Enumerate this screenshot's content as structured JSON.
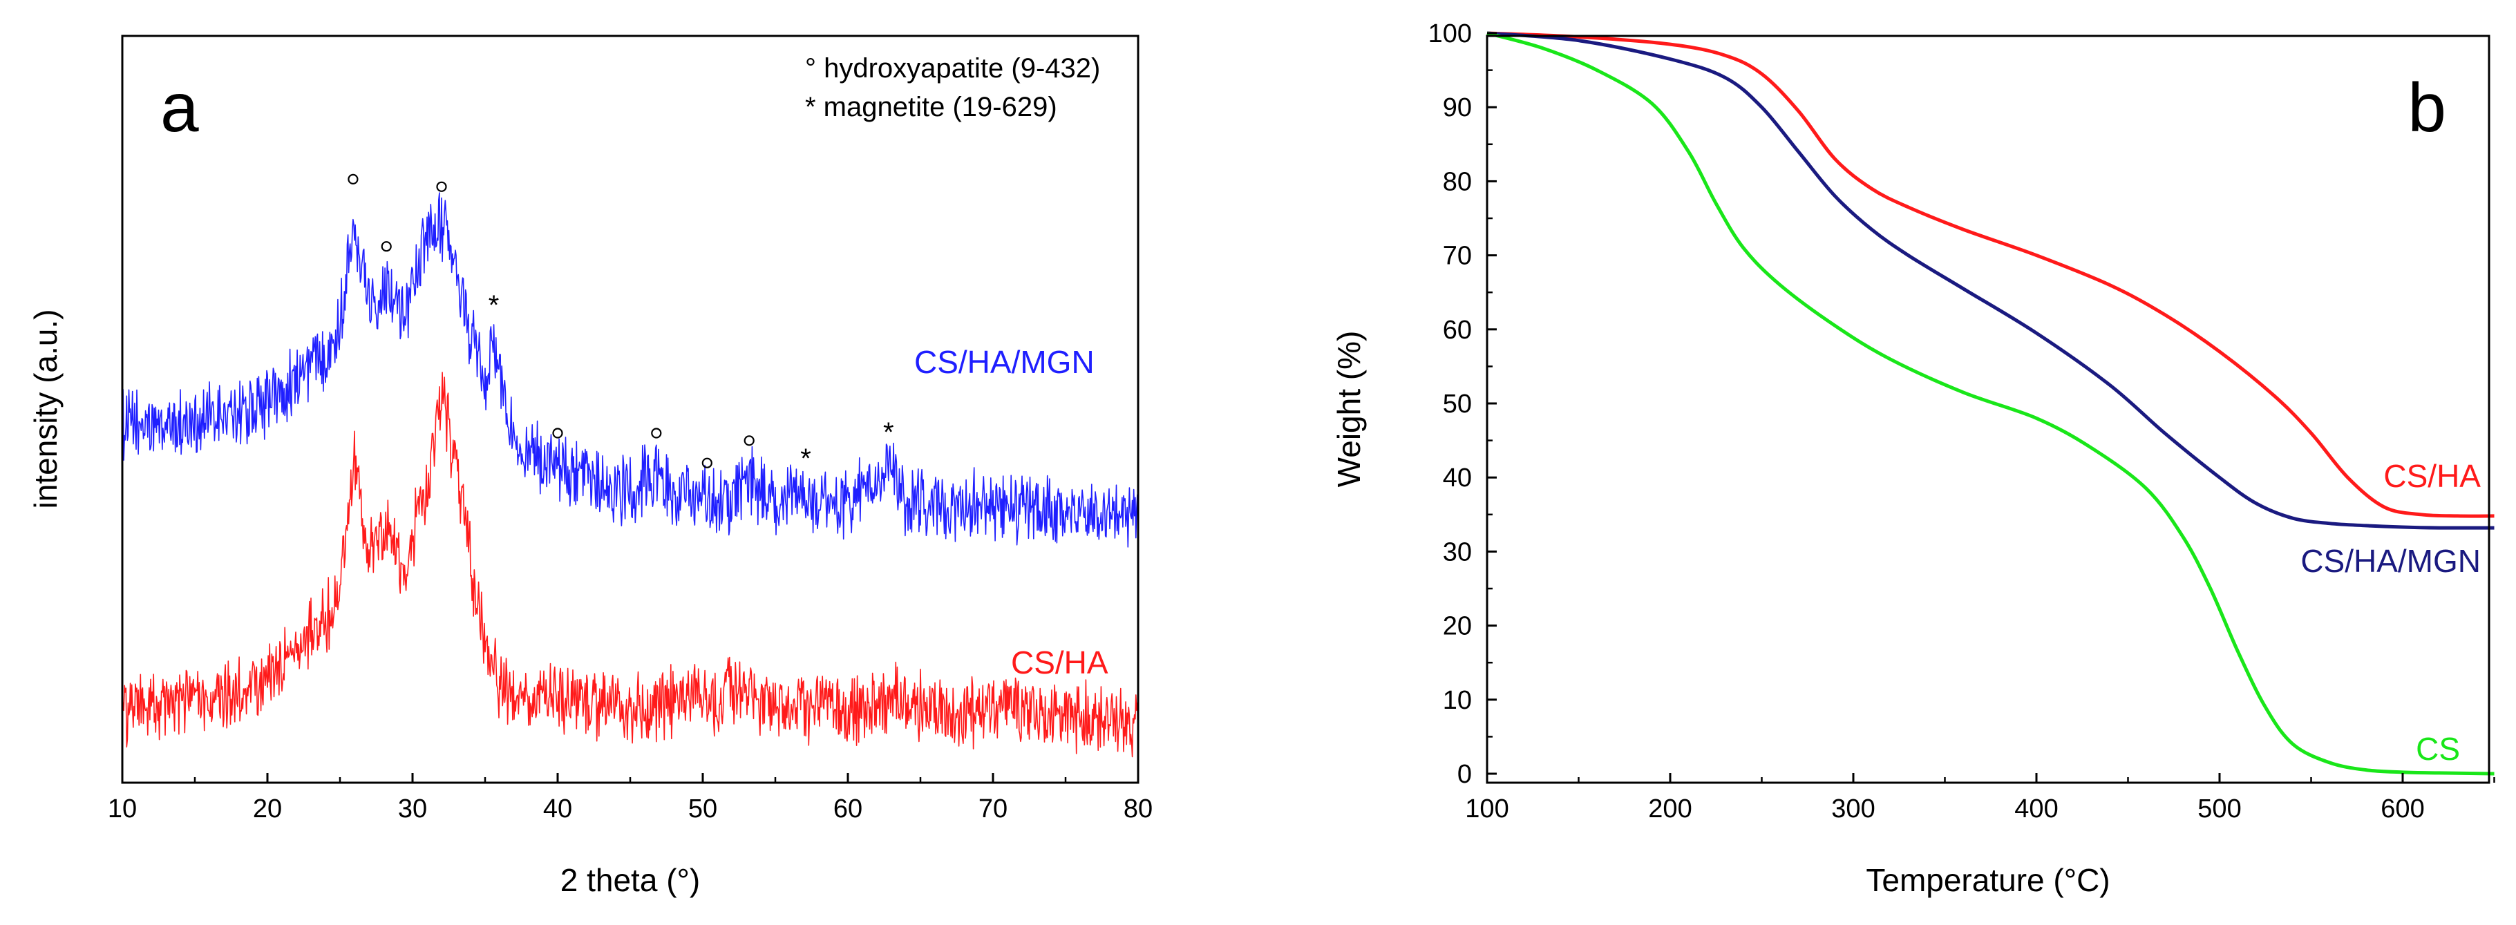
{
  "colors": {
    "blue": "#1f1fff",
    "red": "#ff1a1a",
    "navy": "#1a1a80",
    "green": "#19e619",
    "axis": "#000000"
  },
  "chart_data": [
    {
      "type": "line",
      "panel_label": "a",
      "xlabel": "2 theta (°)",
      "ylabel": "intensity (a.u.)",
      "xlim": [
        10,
        80
      ],
      "ylim": [
        0,
        100
      ],
      "x_ticks": [
        "10",
        "20",
        "30",
        "40",
        "50",
        "60",
        "70",
        "80"
      ],
      "y_ticks_labeled": false,
      "legend_notes": [
        "° hydroxyapatite (9-432)",
        "* magnetite (19-629)"
      ],
      "series": [
        {
          "name": "CS/HA/MGN",
          "color": "#1f1fff",
          "x": [
            10,
            12,
            14,
            16,
            18,
            20,
            22,
            24,
            25,
            25.9,
            27,
            28.2,
            29.5,
            30.5,
            31.5,
            32,
            33,
            34,
            35,
            35.6,
            36.5,
            38,
            40,
            42,
            45,
            46.8,
            48,
            50.3,
            52,
            53.2,
            55,
            57.1,
            60,
            62.8,
            64,
            68,
            72,
            76,
            80
          ],
          "y": [
            48,
            47.5,
            48,
            48.5,
            49.5,
            51,
            54,
            58,
            61,
            76,
            64,
            67,
            63,
            70,
            74,
            75,
            68,
            60,
            54,
            59,
            49,
            44,
            42,
            40,
            39,
            42,
            38,
            38,
            37.5,
            41,
            37,
            38.5,
            37,
            42,
            37.5,
            37,
            36.5,
            36.5,
            36
          ]
        },
        {
          "name": "CS/HA",
          "color": "#ff1a1a",
          "x": [
            10,
            12,
            14,
            16,
            18,
            20,
            22,
            24,
            25,
            26,
            26.8,
            28.3,
            29.5,
            31,
            32,
            33,
            34,
            35,
            36,
            38,
            40,
            42,
            45,
            48,
            49.5,
            51,
            53.2,
            55,
            60,
            63.5,
            66,
            70,
            75,
            80
          ],
          "y": [
            10,
            10,
            10.5,
            11,
            12,
            14,
            17.5,
            22,
            26,
            44,
            30,
            34,
            29,
            40,
            51,
            43,
            30,
            18,
            13,
            11,
            12,
            11,
            10,
            10.5,
            13,
            11,
            12.5,
            10,
            9.5,
            11.5,
            9.5,
            9.5,
            9,
            8.5
          ]
        }
      ],
      "peak_markers": {
        "hydroxyapatite": [
          25.9,
          28.2,
          32.0,
          40.0,
          46.8,
          50.3,
          53.2
        ],
        "magnetite": [
          35.6,
          57.1,
          62.8
        ]
      }
    },
    {
      "type": "line",
      "panel_label": "b",
      "xlabel": "Temperature (°C)",
      "ylabel": "Weight (%)",
      "xlim": [
        100,
        650
      ],
      "ylim": [
        0,
        100
      ],
      "x_ticks": [
        "100",
        "200",
        "300",
        "400",
        "500",
        "600"
      ],
      "y_ticks": [
        "0",
        "10",
        "20",
        "30",
        "40",
        "50",
        "60",
        "70",
        "80",
        "90",
        "100"
      ],
      "series": [
        {
          "name": "CS/HA",
          "color": "#ff1a1a",
          "x": [
            100,
            150,
            200,
            230,
            250,
            270,
            290,
            310,
            330,
            360,
            400,
            440,
            470,
            500,
            530,
            550,
            570,
            590,
            610,
            630,
            650
          ],
          "y": [
            100,
            99.5,
            98.5,
            97,
            94.5,
            89.5,
            83,
            79,
            76.5,
            73.5,
            70,
            66,
            62,
            57,
            51,
            46,
            40,
            36,
            35,
            34.8,
            34.8
          ]
        },
        {
          "name": "CS/HA/MGN",
          "color": "#1a1a80",
          "x": [
            100,
            150,
            200,
            230,
            250,
            270,
            290,
            310,
            330,
            360,
            400,
            440,
            470,
            500,
            520,
            540,
            560,
            580,
            600,
            620,
            650
          ],
          "y": [
            100,
            99,
            96.5,
            94,
            90,
            84,
            78,
            73.5,
            70,
            65.5,
            59.5,
            52.5,
            46,
            40,
            36.5,
            34.5,
            33.8,
            33.5,
            33.3,
            33.2,
            33.2
          ]
        },
        {
          "name": "CS",
          "color": "#19e619",
          "x": [
            100,
            130,
            160,
            190,
            210,
            225,
            240,
            260,
            290,
            320,
            360,
            400,
            430,
            460,
            480,
            495,
            510,
            525,
            540,
            560,
            580,
            600,
            620,
            650
          ],
          "y": [
            100,
            98,
            95,
            90.5,
            84,
            77,
            71,
            66,
            60.5,
            56,
            51.5,
            48,
            44,
            38.5,
            32,
            25,
            16.5,
            9,
            4,
            1.5,
            0.5,
            0.2,
            0.1,
            0
          ]
        }
      ]
    }
  ]
}
